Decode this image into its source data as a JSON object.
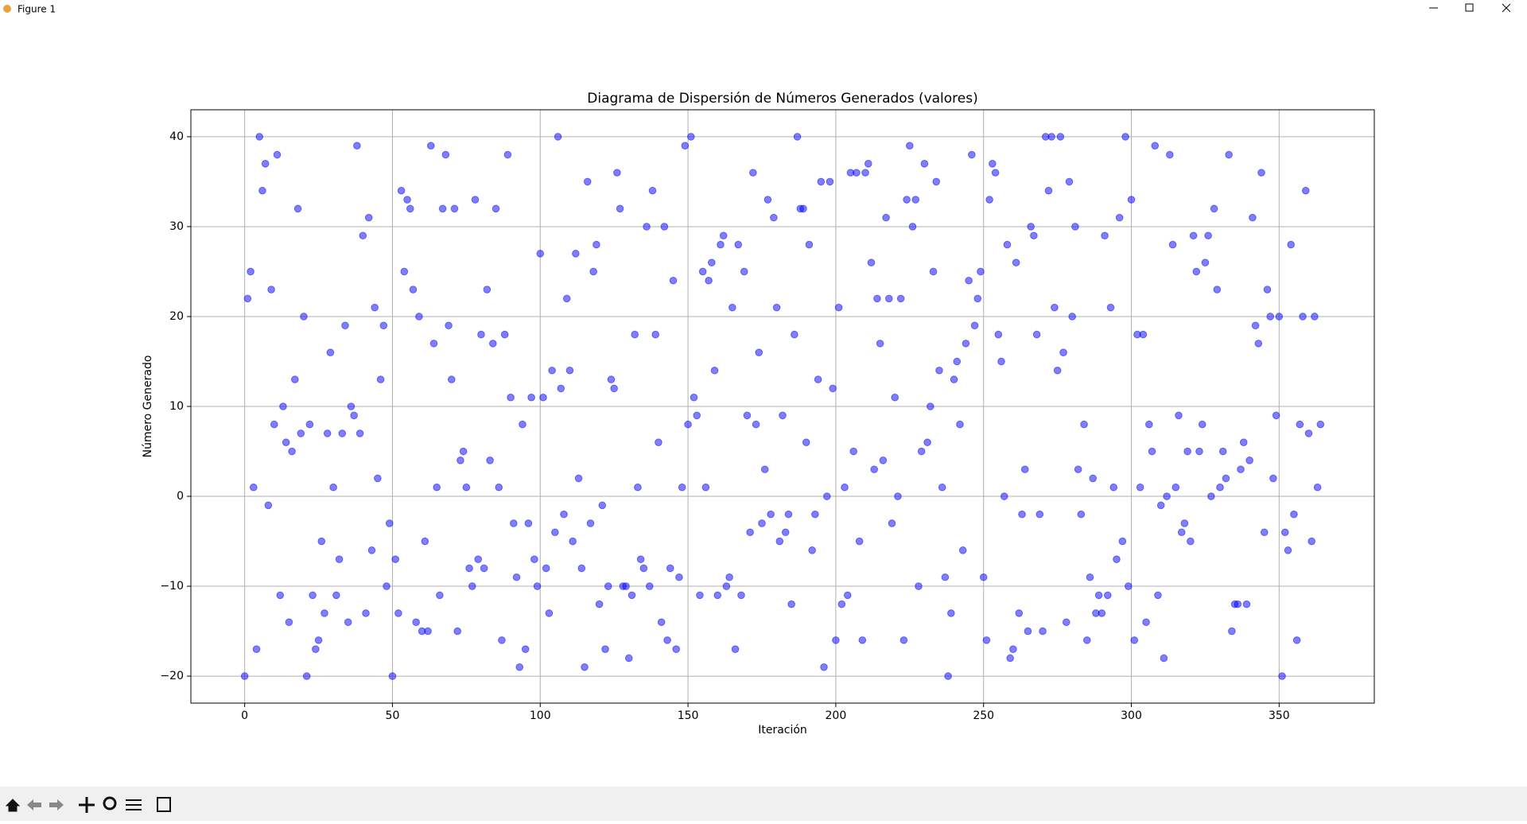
{
  "window_title": "Figure 1",
  "chart_data": {
    "type": "scatter",
    "title": "Diagrama de Dispersión de Números Generados (valores)",
    "x_label": "Iteración",
    "y_label": "Número Generado",
    "color": "blue",
    "alpha": 0.5,
    "grid": true,
    "xlim": [
      -18.2,
      382.2
    ],
    "ylim": [
      -23,
      43
    ],
    "xticks": [
      0,
      50,
      100,
      150,
      200,
      250,
      300,
      350
    ],
    "yticks": [
      {
        "value": -20,
        "label": "−20"
      },
      {
        "value": -10,
        "label": "−10"
      },
      0,
      10,
      20,
      30,
      40
    ],
    "x": [
      0,
      1,
      2,
      3,
      4,
      5,
      6,
      7,
      8,
      9,
      10,
      11,
      12,
      13,
      14,
      15,
      16,
      17,
      18,
      19,
      20,
      21,
      22,
      23,
      24,
      25,
      26,
      27,
      28,
      29,
      30,
      31,
      32,
      33,
      34,
      35,
      36,
      37,
      38,
      39,
      40,
      41,
      42,
      43,
      44,
      45,
      46,
      47,
      48,
      49,
      50,
      51,
      52,
      53,
      54,
      55,
      56,
      57,
      58,
      59,
      60,
      61,
      62,
      63,
      64,
      65,
      66,
      67,
      68,
      69,
      70,
      71,
      72,
      73,
      74,
      75,
      76,
      77,
      78,
      79,
      80,
      81,
      82,
      83,
      84,
      85,
      86,
      87,
      88,
      89,
      90,
      91,
      92,
      93,
      94,
      95,
      96,
      97,
      98,
      99,
      100,
      101,
      102,
      103,
      104,
      105,
      106,
      107,
      108,
      109,
      110,
      111,
      112,
      113,
      114,
      115,
      116,
      117,
      118,
      119,
      120,
      121,
      122,
      123,
      124,
      125,
      126,
      127,
      128,
      129,
      130,
      131,
      132,
      133,
      134,
      135,
      136,
      137,
      138,
      139,
      140,
      141,
      142,
      143,
      144,
      145,
      146,
      147,
      148,
      149,
      150,
      151,
      152,
      153,
      154,
      155,
      156,
      157,
      158,
      159,
      160,
      161,
      162,
      163,
      164,
      165,
      166,
      167,
      168,
      169,
      170,
      171,
      172,
      173,
      174,
      175,
      176,
      177,
      178,
      179,
      180,
      181,
      182,
      183,
      184,
      185,
      186,
      187,
      188,
      189,
      190,
      191,
      192,
      193,
      194,
      195,
      196,
      197,
      198,
      199,
      200,
      201,
      202,
      203,
      204,
      205,
      206,
      207,
      208,
      209,
      210,
      211,
      212,
      213,
      214,
      215,
      216,
      217,
      218,
      219,
      220,
      221,
      222,
      223,
      224,
      225,
      226,
      227,
      228,
      229,
      230,
      231,
      232,
      233,
      234,
      235,
      236,
      237,
      238,
      239,
      240,
      241,
      242,
      243,
      244,
      245,
      246,
      247,
      248,
      249,
      250,
      251,
      252,
      253,
      254,
      255,
      256,
      257,
      258,
      259,
      260,
      261,
      262,
      263,
      264,
      265,
      266,
      267,
      268,
      269,
      270,
      271,
      272,
      273,
      274,
      275,
      276,
      277,
      278,
      279,
      280,
      281,
      282,
      283,
      284,
      285,
      286,
      287,
      288,
      289,
      290,
      291,
      292,
      293,
      294,
      295,
      296,
      297,
      298,
      299,
      300,
      301,
      302,
      303,
      304,
      305,
      306,
      307,
      308,
      309,
      310,
      311,
      312,
      313,
      314,
      315,
      316,
      317,
      318,
      319,
      320,
      321,
      322,
      323,
      324,
      325,
      326,
      327,
      328,
      329,
      330,
      331,
      332,
      333,
      334,
      335,
      336,
      337,
      338,
      339,
      340,
      341,
      342,
      343,
      344,
      345,
      346,
      347,
      348,
      349,
      350,
      351,
      352,
      353,
      354,
      355,
      356,
      357,
      358,
      359,
      360,
      361,
      362,
      363,
      364
    ],
    "values": [
      -20,
      22,
      25,
      1,
      -17,
      40,
      34,
      37,
      -1,
      23,
      8,
      38,
      -11,
      10,
      6,
      -14,
      5,
      13,
      32,
      7,
      20,
      -20,
      8,
      -11,
      -17,
      -16,
      -5,
      -13,
      7,
      16,
      1,
      -11,
      -7,
      7,
      19,
      -14,
      10,
      9,
      39,
      7,
      29,
      -13,
      31,
      -6,
      21,
      2,
      13,
      19,
      -10,
      -3,
      -20,
      -7,
      -13,
      34,
      25,
      33,
      32,
      23,
      -14,
      20,
      -15,
      -5,
      -15,
      39,
      17,
      1,
      -11,
      32,
      38,
      19,
      13,
      32,
      -15,
      4,
      5,
      1,
      -8,
      -10,
      33,
      -7,
      18,
      -8,
      23,
      4,
      17,
      32,
      1,
      -16,
      18,
      38,
      11,
      -3,
      -9,
      -19,
      8,
      -17,
      -3,
      11,
      -7,
      -10,
      27,
      11,
      -8,
      -13,
      14,
      -4,
      40,
      12,
      -2,
      22,
      14,
      -5,
      27,
      2,
      -8,
      -19,
      35,
      -3,
      25,
      28,
      -12,
      -1,
      -17,
      -10,
      13,
      12,
      36,
      32,
      -10,
      -10,
      -18,
      -11,
      18,
      1,
      -7,
      -8,
      30,
      -10,
      34,
      18,
      6,
      -14,
      30,
      -16,
      -8,
      24,
      -17,
      -9,
      1,
      39,
      8,
      40,
      11,
      9,
      -11,
      25,
      1,
      24,
      26,
      14,
      -11,
      28,
      29,
      -10,
      -9,
      21,
      -17,
      28,
      -11,
      25,
      9,
      -4,
      36,
      8,
      16,
      -3,
      3,
      33,
      -2,
      31,
      21,
      -5,
      9,
      -4,
      -2,
      -12,
      18,
      40,
      32,
      32,
      6,
      28,
      -6,
      -2,
      13,
      35,
      -19,
      0,
      35,
      12,
      -16,
      21,
      -12,
      1,
      -11,
      36,
      5,
      36,
      -5,
      -16,
      36,
      37,
      26,
      3,
      22,
      17,
      4,
      31,
      22,
      -3,
      11,
      0,
      22,
      -16,
      33,
      39,
      30,
      33,
      -10,
      5,
      37,
      6,
      10,
      25,
      35,
      14,
      1,
      -9,
      -20,
      -13,
      13,
      15,
      8,
      -6,
      17,
      24,
      38,
      19,
      22,
      25,
      -9,
      -16,
      33,
      37,
      36,
      18,
      15,
      0,
      28,
      -18,
      -17,
      26,
      -13,
      -2,
      3,
      -15,
      30,
      29,
      18,
      -2,
      -15,
      40,
      34,
      40,
      21,
      14,
      40,
      16,
      -14,
      35,
      20,
      30,
      3,
      -2,
      8,
      -16,
      -9,
      2,
      -13,
      -11,
      -13,
      29,
      -11,
      21,
      1,
      -7,
      31,
      -5,
      40,
      -10,
      33,
      -16,
      18,
      1,
      18,
      -14,
      8,
      5,
      39,
      -11,
      -1,
      -18,
      0,
      38,
      28,
      1,
      9,
      -4,
      -3,
      5,
      -5,
      29,
      25,
      5,
      8,
      26,
      29,
      0,
      32,
      23,
      1,
      5,
      2,
      38,
      -15,
      -12,
      -12,
      3,
      6,
      -12,
      4,
      31,
      19,
      17,
      36,
      -4,
      23,
      20,
      2,
      9,
      20,
      -20,
      -4,
      -6,
      28,
      -2,
      -16,
      8,
      20,
      34,
      7,
      -5,
      20,
      1,
      8
    ]
  }
}
